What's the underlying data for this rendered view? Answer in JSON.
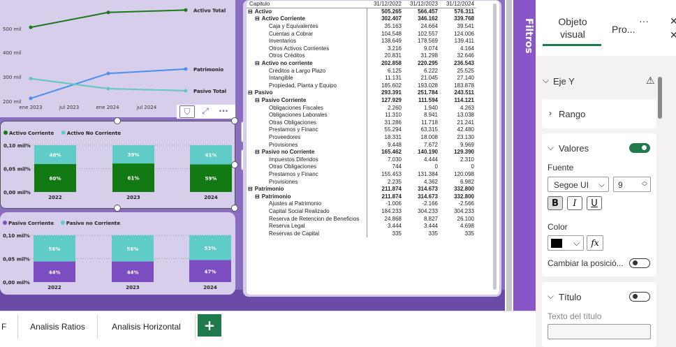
{
  "top_chart": {
    "chart_data": {
      "type": "line",
      "x": [
        "ene 2023",
        "jul 2023",
        "ene 2024",
        "jul 2024"
      ],
      "yticks": [
        "200 mil",
        "300 mil",
        "400 mil",
        "500 mil"
      ],
      "ylim": [
        200000,
        600000
      ],
      "series": [
        {
          "name": "Activo Total",
          "color": "#1a7a1a",
          "x": [
            "2022",
            "2023",
            "2024"
          ],
          "values": [
            505265,
            566457,
            576311
          ]
        },
        {
          "name": "Patrimonio",
          "color": "#4a8ef0",
          "x": [
            "2022",
            "2023",
            "2024"
          ],
          "values": [
            211874,
            314673,
            332800
          ]
        },
        {
          "name": "Pasivo Total",
          "color": "#5fc9c0",
          "x": [
            "2022",
            "2023",
            "2024"
          ],
          "values": [
            293391,
            251784,
            243511
          ]
        }
      ]
    },
    "icons": [
      "filter-icon",
      "focus-mode-icon",
      "more-options-icon"
    ]
  },
  "activo_chart": {
    "chart_data": {
      "type": "bar",
      "stacked": true,
      "categories": [
        "2022",
        "2023",
        "2024"
      ],
      "yticks": [
        "0,10 mil%",
        "0,05 mil%",
        "0,00 mil%"
      ],
      "series": [
        {
          "name": "Activo Corriente",
          "color": "#127a12",
          "values": [
            60,
            61,
            59
          ],
          "labels": [
            "60%",
            "61%",
            "59%"
          ]
        },
        {
          "name": "Activo No Corriente",
          "color": "#5fccc8",
          "values": [
            40,
            39,
            41
          ],
          "labels": [
            "40%",
            "39%",
            "41%"
          ]
        }
      ]
    }
  },
  "pasivo_chart": {
    "chart_data": {
      "type": "bar",
      "stacked": true,
      "categories": [
        "2022",
        "2023",
        "2024"
      ],
      "yticks": [
        "0,10 mil%",
        "0,05 mil%",
        "0,00 mil%"
      ],
      "series": [
        {
          "name": "Pasivo Corriente",
          "color": "#7c4dc0",
          "values": [
            44,
            44,
            47
          ],
          "labels": [
            "44%",
            "44%",
            "47%"
          ]
        },
        {
          "name": "Pasivo no Corriente",
          "color": "#5fccc8",
          "values": [
            56,
            56,
            53
          ],
          "labels": [
            "56%",
            "56%",
            "53%"
          ]
        }
      ]
    }
  },
  "table": {
    "headers": [
      "Capitulo",
      "31/12/2022",
      "31/12/2023",
      "31/12/2024"
    ],
    "rows": [
      {
        "level": 0,
        "bold": true,
        "expand": "⊟",
        "name": "Activo",
        "v": [
          "505.265",
          "566.457",
          "576.311"
        ]
      },
      {
        "level": 1,
        "bold": true,
        "expand": "⊟",
        "name": "Activo Corriente",
        "v": [
          "302.407",
          "346.162",
          "339.768"
        ]
      },
      {
        "level": 2,
        "bold": false,
        "expand": "",
        "name": "Caja y Equivalentes",
        "v": [
          "35.163",
          "24.664",
          "39.541"
        ]
      },
      {
        "level": 2,
        "bold": false,
        "expand": "",
        "name": "Cuentas a Cobrar",
        "v": [
          "104.548",
          "102.557",
          "124.006"
        ]
      },
      {
        "level": 2,
        "bold": false,
        "expand": "",
        "name": "Inventarios",
        "v": [
          "138.649",
          "178.569",
          "139.411"
        ]
      },
      {
        "level": 2,
        "bold": false,
        "expand": "",
        "name": "Otros Activos Corrientes",
        "v": [
          "3.216",
          "9.074",
          "4.164"
        ]
      },
      {
        "level": 2,
        "bold": false,
        "expand": "",
        "name": "Otros Créditos",
        "v": [
          "20.831",
          "31.298",
          "32.646"
        ]
      },
      {
        "level": 1,
        "bold": true,
        "expand": "⊟",
        "name": "Activo no corriente",
        "v": [
          "202.858",
          "220.295",
          "236.543"
        ]
      },
      {
        "level": 2,
        "bold": false,
        "expand": "",
        "name": "Créditos a Largo Plazo",
        "v": [
          "6.125",
          "6.222",
          "25.525"
        ]
      },
      {
        "level": 2,
        "bold": false,
        "expand": "",
        "name": "Intangible",
        "v": [
          "11.131",
          "21.045",
          "27.140"
        ]
      },
      {
        "level": 2,
        "bold": false,
        "expand": "",
        "name": "Propiedad, Planta y Equipo",
        "v": [
          "185.602",
          "193.028",
          "183.878"
        ]
      },
      {
        "level": 0,
        "bold": true,
        "expand": "⊟",
        "name": "Pasivo",
        "v": [
          "293.391",
          "251.784",
          "243.511"
        ]
      },
      {
        "level": 1,
        "bold": true,
        "expand": "⊟",
        "name": "Pasivo Corriente",
        "v": [
          "127.929",
          "111.594",
          "114.121"
        ]
      },
      {
        "level": 2,
        "bold": false,
        "expand": "",
        "name": "Obligaciones Fiscales",
        "v": [
          "2.260",
          "1.940",
          "4.263"
        ]
      },
      {
        "level": 2,
        "bold": false,
        "expand": "",
        "name": "Obligaciones Laborales",
        "v": [
          "11.310",
          "8.941",
          "13.038"
        ]
      },
      {
        "level": 2,
        "bold": false,
        "expand": "",
        "name": "Otras Obligaciones",
        "v": [
          "31.286",
          "11.718",
          "21.241"
        ]
      },
      {
        "level": 2,
        "bold": false,
        "expand": "",
        "name": "Prestamos y Financ",
        "v": [
          "55.294",
          "63.315",
          "42.480"
        ]
      },
      {
        "level": 2,
        "bold": false,
        "expand": "",
        "name": "Proveedores",
        "v": [
          "18.331",
          "18.008",
          "23.130"
        ]
      },
      {
        "level": 2,
        "bold": false,
        "expand": "",
        "name": "Provisiones",
        "v": [
          "9.448",
          "7.672",
          "9.969"
        ]
      },
      {
        "level": 1,
        "bold": true,
        "expand": "⊟",
        "name": "Pasivo no Corriente",
        "v": [
          "165.462",
          "140.190",
          "129.390"
        ]
      },
      {
        "level": 2,
        "bold": false,
        "expand": "",
        "name": "Impuestos Diferidos",
        "v": [
          "7.030",
          "4.444",
          "2.310"
        ]
      },
      {
        "level": 2,
        "bold": false,
        "expand": "",
        "name": "Otras Obligaciones",
        "v": [
          "744",
          "0",
          "0"
        ]
      },
      {
        "level": 2,
        "bold": false,
        "expand": "",
        "name": "Prestamos y Financ",
        "v": [
          "155.453",
          "131.384",
          "120.098"
        ]
      },
      {
        "level": 2,
        "bold": false,
        "expand": "",
        "name": "Provisiones",
        "v": [
          "2.235",
          "4.362",
          "6.982"
        ]
      },
      {
        "level": 0,
        "bold": true,
        "expand": "⊟",
        "name": "Patrimonio",
        "v": [
          "211.874",
          "314.673",
          "332.800"
        ]
      },
      {
        "level": 1,
        "bold": true,
        "expand": "⊟",
        "name": "Patrimonio",
        "v": [
          "211.874",
          "314.673",
          "332.800"
        ]
      },
      {
        "level": 2,
        "bold": false,
        "expand": "",
        "name": "Ajustes al Patrimonio",
        "v": [
          "-1.006",
          "-2.166",
          "-2.566"
        ]
      },
      {
        "level": 2,
        "bold": false,
        "expand": "",
        "name": "Capital Social Realizado",
        "v": [
          "184.233",
          "304.233",
          "304.233"
        ]
      },
      {
        "level": 2,
        "bold": false,
        "expand": "",
        "name": "Reserva de Retencion de Beneficios",
        "v": [
          "24.868",
          "8.827",
          "26.100"
        ]
      },
      {
        "level": 2,
        "bold": false,
        "expand": "",
        "name": "Reserva Legal",
        "v": [
          "3.444",
          "3.444",
          "4.698"
        ]
      },
      {
        "level": 2,
        "bold": false,
        "expand": "",
        "name": "Reservas de Capital",
        "v": [
          "335",
          "335",
          "335"
        ]
      }
    ]
  },
  "filters_pane": {
    "label": "Filtros"
  },
  "format_pane": {
    "tab_visual": "Objeto visual",
    "tab_general": "Pro...",
    "more": "···",
    "eje_y": "Eje Y",
    "rango": "Rango",
    "valores": "Valores",
    "fuente_label": "Fuente",
    "font_name": "Segoe UI",
    "font_size": "9",
    "bold_btn": "B",
    "italic_btn": "I",
    "underline_btn": "U",
    "color_label": "Color",
    "fx_btn": "fx",
    "cambiar_posicion": "Cambiar la posició...",
    "titulo": "Título",
    "texto_titulo": "Texto del título"
  },
  "page_tabs": {
    "partial": "F",
    "tab1": "Analisis Ratios",
    "tab2": "Analisis Horizontal",
    "add": "+"
  }
}
